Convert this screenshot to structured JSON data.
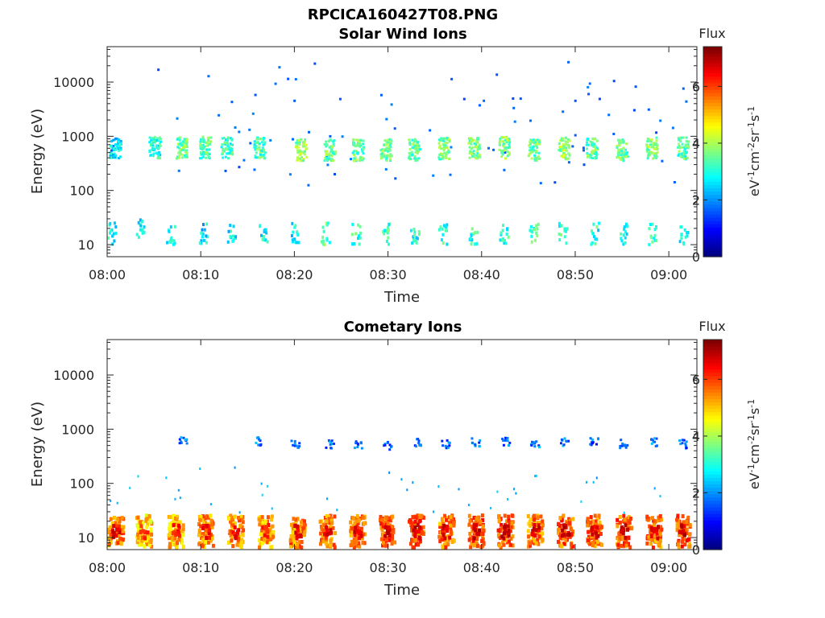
{
  "figure_title": "RPCICA160427T08.PNG",
  "chart_data": [
    {
      "type": "heatmap",
      "title": "Solar Wind Ions",
      "xlabel": "Time",
      "ylabel": "Energy (eV)",
      "y_scale": "log",
      "ylim": [
        6,
        45000
      ],
      "xlim": [
        "08:00",
        "09:03"
      ],
      "x_ticks": [
        "08:00",
        "08:10",
        "08:20",
        "08:30",
        "08:40",
        "08:50",
        "09:00"
      ],
      "y_ticks": [
        "10",
        "100",
        "1000",
        "10000"
      ],
      "colorbar": {
        "title": "Flux",
        "label": "eV-1cm-2sr-1s-1",
        "range": [
          0,
          7.4
        ],
        "ticks": [
          "0",
          "2",
          "4",
          "6"
        ],
        "colormap": "jet"
      },
      "grid": false,
      "bursts": [
        {
          "t": 0.8,
          "e": 620,
          "v": 2.6
        },
        {
          "t": 5.0,
          "e": 620,
          "v": 3.0
        },
        {
          "t": 7.9,
          "e": 620,
          "v": 3.6
        },
        {
          "t": 10.4,
          "e": 620,
          "v": 3.4
        },
        {
          "t": 12.7,
          "e": 620,
          "v": 3.2
        },
        {
          "t": 16.2,
          "e": 620,
          "v": 3.3
        },
        {
          "t": 20.6,
          "e": 560,
          "v": 3.8
        },
        {
          "t": 23.7,
          "e": 560,
          "v": 3.6
        },
        {
          "t": 26.7,
          "e": 560,
          "v": 3.5
        },
        {
          "t": 29.7,
          "e": 560,
          "v": 3.6
        },
        {
          "t": 32.7,
          "e": 560,
          "v": 3.5
        },
        {
          "t": 35.9,
          "e": 600,
          "v": 3.6
        },
        {
          "t": 39.1,
          "e": 600,
          "v": 3.6
        },
        {
          "t": 42.3,
          "e": 620,
          "v": 3.7
        },
        {
          "t": 45.5,
          "e": 560,
          "v": 3.6
        },
        {
          "t": 48.7,
          "e": 600,
          "v": 3.8
        },
        {
          "t": 51.7,
          "e": 600,
          "v": 3.5
        },
        {
          "t": 54.9,
          "e": 560,
          "v": 3.5
        },
        {
          "t": 58.1,
          "e": 600,
          "v": 3.6
        },
        {
          "t": 61.4,
          "e": 600,
          "v": 3.3
        }
      ],
      "low_energy_bursts": [
        {
          "t": 0.4,
          "e": 19,
          "v": 2.8
        },
        {
          "t": 3.5,
          "e": 22,
          "v": 2.8
        },
        {
          "t": 6.7,
          "e": 19,
          "v": 2.6
        },
        {
          "t": 10.2,
          "e": 19,
          "v": 2.6
        },
        {
          "t": 13.2,
          "e": 19,
          "v": 2.8
        },
        {
          "t": 16.6,
          "e": 19,
          "v": 2.9
        },
        {
          "t": 20.0,
          "e": 19,
          "v": 2.8
        },
        {
          "t": 23.2,
          "e": 19,
          "v": 3.4
        },
        {
          "t": 26.5,
          "e": 19,
          "v": 3.1
        },
        {
          "t": 29.7,
          "e": 19,
          "v": 3.2
        },
        {
          "t": 32.8,
          "e": 19,
          "v": 3.0
        },
        {
          "t": 35.8,
          "e": 19,
          "v": 3.0
        },
        {
          "t": 39.0,
          "e": 19,
          "v": 3.0
        },
        {
          "t": 42.3,
          "e": 19,
          "v": 3.0
        },
        {
          "t": 45.5,
          "e": 19,
          "v": 3.2
        },
        {
          "t": 48.6,
          "e": 19,
          "v": 3.2
        },
        {
          "t": 52.0,
          "e": 19,
          "v": 3.0
        },
        {
          "t": 55.2,
          "e": 19,
          "v": 3.0
        },
        {
          "t": 58.2,
          "e": 19,
          "v": 3.0
        },
        {
          "t": 61.5,
          "e": 19,
          "v": 3.0
        }
      ]
    },
    {
      "type": "heatmap",
      "title": "Cometary Ions",
      "xlabel": "Time",
      "ylabel": "Energy (eV)",
      "y_scale": "log",
      "ylim": [
        6,
        45000
      ],
      "xlim": [
        "08:00",
        "09:03"
      ],
      "x_ticks": [
        "08:00",
        "08:10",
        "08:20",
        "08:30",
        "08:40",
        "08:50",
        "09:00"
      ],
      "y_ticks": [
        "10",
        "100",
        "1000",
        "10000"
      ],
      "colorbar": {
        "title": "Flux",
        "label": "eV-1cm-2sr-1s-1",
        "range": [
          0,
          7.4
        ],
        "ticks": [
          "0",
          "2",
          "4",
          "6"
        ],
        "colormap": "jet"
      },
      "grid": false,
      "bursts": [
        {
          "t": 0.8,
          "e": 14,
          "v": 5.6
        },
        {
          "t": 3.8,
          "e": 14,
          "v": 5.0
        },
        {
          "t": 7.2,
          "e": 14,
          "v": 5.2
        },
        {
          "t": 10.4,
          "e": 14,
          "v": 5.4
        },
        {
          "t": 13.6,
          "e": 14,
          "v": 5.4
        },
        {
          "t": 16.8,
          "e": 14,
          "v": 5.2
        },
        {
          "t": 20.2,
          "e": 14,
          "v": 5.6
        },
        {
          "t": 23.4,
          "e": 14,
          "v": 5.6
        },
        {
          "t": 26.6,
          "e": 14,
          "v": 5.6
        },
        {
          "t": 29.8,
          "e": 14,
          "v": 5.8
        },
        {
          "t": 32.9,
          "e": 14,
          "v": 5.8
        },
        {
          "t": 36.1,
          "e": 14,
          "v": 5.6
        },
        {
          "t": 39.3,
          "e": 14,
          "v": 5.8
        },
        {
          "t": 42.4,
          "e": 14,
          "v": 5.8
        },
        {
          "t": 45.6,
          "e": 14,
          "v": 5.6
        },
        {
          "t": 48.8,
          "e": 14,
          "v": 5.8
        },
        {
          "t": 51.9,
          "e": 14,
          "v": 5.6
        },
        {
          "t": 55.1,
          "e": 14,
          "v": 5.8
        },
        {
          "t": 58.3,
          "e": 14,
          "v": 5.6
        },
        {
          "t": 61.4,
          "e": 14,
          "v": 5.8
        }
      ],
      "high_energy_patches": [
        {
          "t": 8.0,
          "e": 620,
          "v": 1.8
        },
        {
          "t": 16.2,
          "e": 620,
          "v": 1.8
        },
        {
          "t": 20.0,
          "e": 560,
          "v": 1.6
        },
        {
          "t": 23.7,
          "e": 560,
          "v": 1.6
        },
        {
          "t": 26.7,
          "e": 560,
          "v": 1.5
        },
        {
          "t": 29.8,
          "e": 520,
          "v": 1.6
        },
        {
          "t": 33.0,
          "e": 600,
          "v": 1.7
        },
        {
          "t": 36.1,
          "e": 560,
          "v": 1.6
        },
        {
          "t": 39.3,
          "e": 600,
          "v": 1.8
        },
        {
          "t": 42.5,
          "e": 620,
          "v": 1.6
        },
        {
          "t": 45.6,
          "e": 560,
          "v": 1.7
        },
        {
          "t": 48.8,
          "e": 600,
          "v": 1.8
        },
        {
          "t": 51.9,
          "e": 600,
          "v": 1.6
        },
        {
          "t": 55.1,
          "e": 560,
          "v": 1.6
        },
        {
          "t": 58.3,
          "e": 600,
          "v": 1.7
        },
        {
          "t": 61.4,
          "e": 560,
          "v": 1.6
        }
      ]
    }
  ]
}
